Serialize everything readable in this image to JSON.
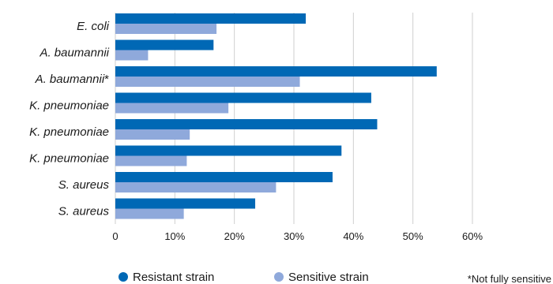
{
  "chart_data": {
    "type": "bar",
    "orientation": "horizontal",
    "categories": [
      {
        "name": "E. coli",
        "suffix": ""
      },
      {
        "name": "A. baumannii",
        "suffix": ""
      },
      {
        "name": "A. baumannii",
        "suffix": "*"
      },
      {
        "name": "K. pneumoniae",
        "suffix": ""
      },
      {
        "name": "K. pneumoniae",
        "suffix": ""
      },
      {
        "name": "K. pneumoniae",
        "suffix": ""
      },
      {
        "name": "S. aureus",
        "suffix": ""
      },
      {
        "name": "S. aureus",
        "suffix": ""
      }
    ],
    "series": [
      {
        "name": "Resistant strain",
        "color": "#0068b5",
        "values": [
          32,
          16.5,
          54,
          43,
          44,
          38,
          36.5,
          23.5
        ]
      },
      {
        "name": "Sensitive strain",
        "color": "#8fa9db",
        "values": [
          17,
          5.5,
          31,
          19,
          12.5,
          12,
          27,
          11.5
        ]
      }
    ],
    "xlim": [
      0,
      60
    ],
    "xticks": [
      0,
      10,
      20,
      30,
      40,
      50,
      60
    ],
    "xtick_labels": [
      "0",
      "10%",
      "20%",
      "30%",
      "40%",
      "50%",
      "60%"
    ],
    "grid": "vertical",
    "legend_position": "bottom",
    "footnote": "*Not fully sensitive"
  }
}
